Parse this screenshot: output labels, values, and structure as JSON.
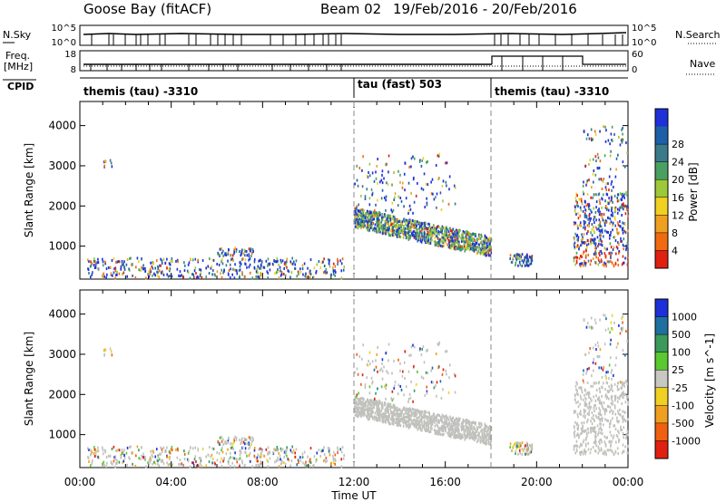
{
  "header": {
    "title": "Goose Bay (fitACF)",
    "beam": "Beam 02",
    "date_range": "19/Feb/2016 - 20/Feb/2016"
  },
  "noise_panel": {
    "left_label": "N.Sky",
    "right_label": "N.Search",
    "ticks_left": [
      "10^5",
      "10^0"
    ],
    "ticks_right": [
      "10^5",
      "10^0"
    ]
  },
  "freq_panel": {
    "left_label_1": "Freq.",
    "left_label_2": "[MHz]",
    "right_label": "Nave",
    "ticks_left": [
      "18",
      "8"
    ],
    "ticks_right": [
      "60",
      "0"
    ]
  },
  "cpid": {
    "label": "CPID",
    "segments": [
      {
        "name": "themis (tau) -3310",
        "start_hour": 0,
        "end_hour": 12
      },
      {
        "name": "tau (fast) 503",
        "start_hour": 12,
        "end_hour": 18
      },
      {
        "name": "themis (tau) -3310",
        "start_hour": 18,
        "end_hour": 24
      }
    ]
  },
  "chart_data": [
    {
      "type": "heatmap",
      "title": "",
      "xlabel": "Time UT",
      "ylabel": "Slant Range [km]",
      "xlim": [
        0,
        24
      ],
      "ylim": [
        180,
        4600
      ],
      "x_ticks": [
        "00:00",
        "04:00",
        "08:00",
        "12:00",
        "16:00",
        "20:00",
        "00:00"
      ],
      "y_ticks": [
        1000,
        2000,
        3000,
        4000
      ],
      "colorbar": {
        "label": "Power [dB]",
        "ticks": [
          4,
          8,
          12,
          16,
          20,
          24,
          28
        ],
        "colors": [
          "#1e30d8",
          "#1e60a8",
          "#3a7a8a",
          "#4aa060",
          "#9cc83a",
          "#f0d020",
          "#f0a020",
          "#f06a10",
          "#e02010"
        ]
      },
      "features": [
        {
          "desc": "near-range echoes",
          "x": [
            0,
            11.5
          ],
          "range_km": [
            200,
            900
          ]
        },
        {
          "desc": "main scatter band",
          "x": [
            12,
            18
          ],
          "range_km": [
            900,
            2000
          ]
        },
        {
          "desc": "late-day scatter",
          "x": [
            21.5,
            24
          ],
          "range_km": [
            500,
            3500
          ]
        }
      ]
    },
    {
      "type": "heatmap",
      "title": "",
      "xlabel": "Time UT",
      "ylabel": "Slant Range [km]",
      "xlim": [
        0,
        24
      ],
      "ylim": [
        180,
        4600
      ],
      "x_ticks": [
        "00:00",
        "04:00",
        "08:00",
        "12:00",
        "16:00",
        "20:00",
        "00:00"
      ],
      "y_ticks": [
        1000,
        2000,
        3000,
        4000
      ],
      "colorbar": {
        "label": "Velocity [m s^-1]",
        "ticks": [
          1000,
          500,
          100,
          25,
          -25,
          -100,
          -500,
          -1000
        ],
        "colors": [
          "#1e30d8",
          "#1e70a0",
          "#3a9a5a",
          "#5ac830",
          "#c8c8c0",
          "#f0d020",
          "#f0a020",
          "#f06010",
          "#e02010"
        ]
      }
    }
  ],
  "colors": {
    "divider_dash": "#888888",
    "ground_scatter": "#c0c0bc"
  }
}
